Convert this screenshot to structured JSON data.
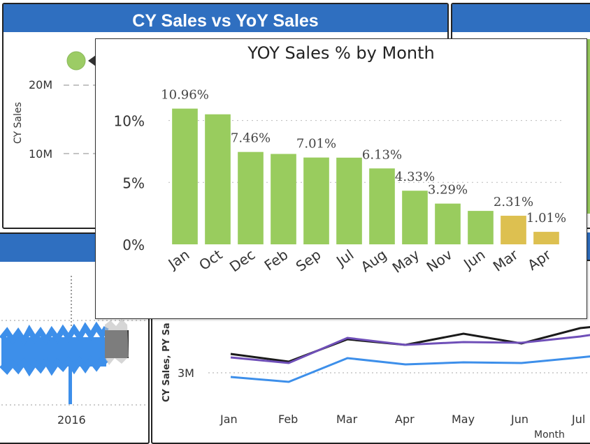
{
  "panel_top_left": {
    "title": "CY Sales vs YoY Sales",
    "y_axis_label": "CY Sales",
    "y_ticks": [
      "20M",
      "10M"
    ],
    "point_color": "#9ccc65"
  },
  "panel_mid_left": {
    "x_tick": "2016"
  },
  "panel_bottom": {
    "y_axis_label": "CY Sales, PY Sa",
    "y_tick": "3M",
    "x_axis_label": "Month",
    "x_ticks": [
      "Jan",
      "Feb",
      "Mar",
      "Apr",
      "May",
      "Jun",
      "Jul"
    ],
    "series_colors": [
      "#1a1a1a",
      "#6f4fb8",
      "#3d8fea"
    ]
  },
  "tooltip": {
    "title": "YOY Sales % by Month",
    "colors": {
      "normal": "#99cc5e",
      "low": "#ddc050"
    }
  },
  "chart_data": {
    "type": "bar",
    "title": "YOY Sales % by Month",
    "categories": [
      "Jan",
      "Oct",
      "Dec",
      "Feb",
      "Sep",
      "Jul",
      "Aug",
      "May",
      "Nov",
      "Jun",
      "Mar",
      "Apr"
    ],
    "values": [
      10.96,
      10.5,
      7.46,
      7.3,
      7.01,
      7.0,
      6.13,
      4.33,
      3.29,
      2.7,
      2.31,
      1.01
    ],
    "data_labels": [
      "10.96%",
      "",
      "7.46%",
      "",
      "7.01%",
      "",
      "6.13%",
      "4.33%",
      "3.29%",
      "",
      "2.31%",
      "1.01%"
    ],
    "y_ticks": [
      "10%",
      "5%",
      "0%"
    ],
    "y_tick_values": [
      10,
      5,
      0
    ],
    "ylim": [
      0,
      11.5
    ],
    "low_categories": [
      "Mar",
      "Apr"
    ],
    "grid": true
  }
}
